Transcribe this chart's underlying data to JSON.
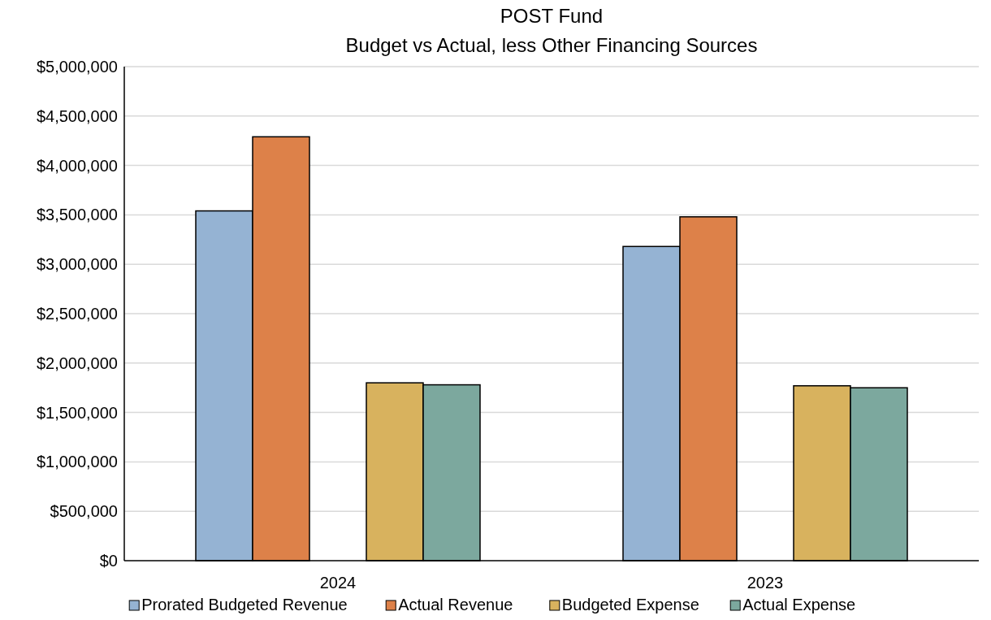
{
  "chart_data": {
    "type": "bar",
    "title": "POST Fund",
    "subtitle": "Budget vs Actual, less Other Financing Sources",
    "categories": [
      "2024",
      "2023"
    ],
    "series": [
      {
        "name": "Prorated Budgeted Revenue",
        "color": "#95b3d3",
        "values": [
          3540000,
          3180000
        ]
      },
      {
        "name": "Actual Revenue",
        "color": "#dd8149",
        "values": [
          4290000,
          3480000
        ]
      },
      {
        "name": "Budgeted Expense",
        "color": "#d8b25e",
        "values": [
          1800000,
          1770000
        ]
      },
      {
        "name": "Actual Expense",
        "color": "#7ca89e",
        "values": [
          1780000,
          1750000
        ]
      }
    ],
    "ylim": [
      0,
      5000000
    ],
    "yticks": [
      {
        "value": 0,
        "label": "$0"
      },
      {
        "value": 500000,
        "label": "$500,000"
      },
      {
        "value": 1000000,
        "label": "$1,000,000"
      },
      {
        "value": 1500000,
        "label": "$1,500,000"
      },
      {
        "value": 2000000,
        "label": "$2,000,000"
      },
      {
        "value": 2500000,
        "label": "$2,500,000"
      },
      {
        "value": 3000000,
        "label": "$3,000,000"
      },
      {
        "value": 3500000,
        "label": "$3,500,000"
      },
      {
        "value": 4000000,
        "label": "$4,000,000"
      },
      {
        "value": 4500000,
        "label": "$4,500,000"
      },
      {
        "value": 5000000,
        "label": "$5,000,000"
      }
    ],
    "grid": "y",
    "legend": "bottom"
  }
}
